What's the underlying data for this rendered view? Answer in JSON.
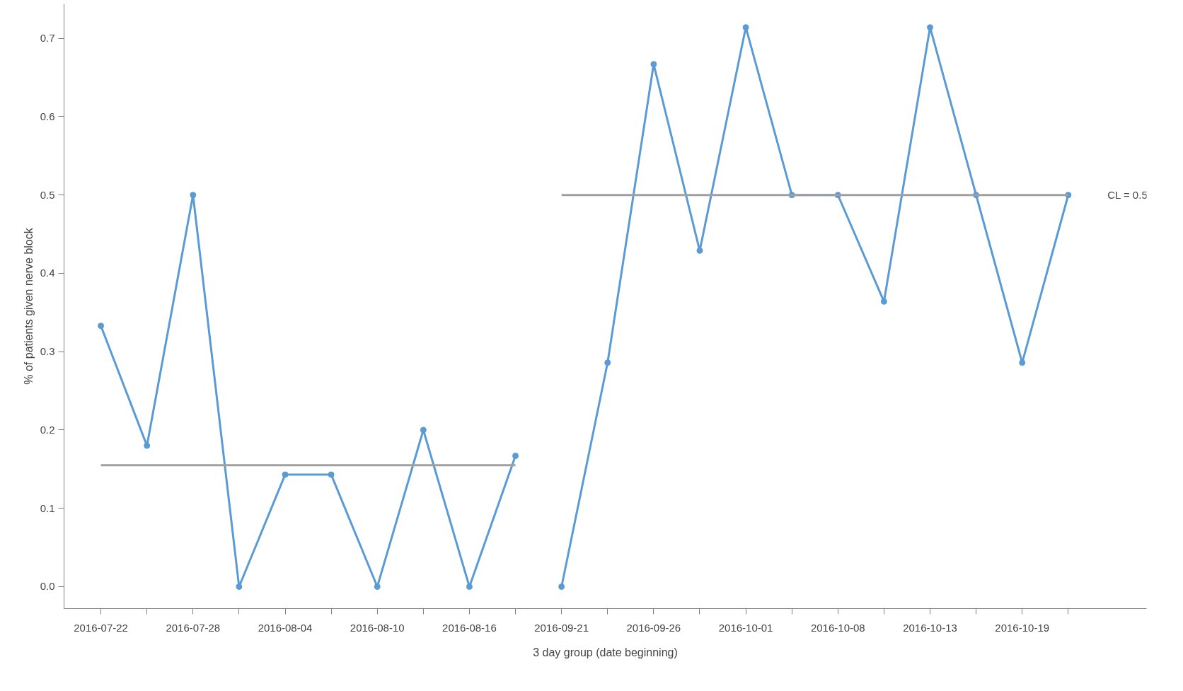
{
  "chart_data": {
    "type": "line",
    "xlabel": "3 day group (date beginning)",
    "ylabel": "% of patients given nerve block",
    "categories": [
      "2016-07-22",
      null,
      "2016-07-28",
      null,
      "2016-08-04",
      null,
      "2016-08-10",
      null,
      "2016-08-16",
      null,
      "2016-09-21",
      null,
      "2016-09-26",
      null,
      "2016-10-01",
      null,
      "2016-10-08",
      null,
      "2016-10-13",
      null,
      "2016-10-19",
      null
    ],
    "series": [
      {
        "color": "#5b9bd5",
        "marker": "circle",
        "values": [
          0.333,
          0.18,
          0.5,
          0.0,
          0.143,
          0.143,
          0.0,
          0.2,
          0.0,
          0.167,
          null,
          null,
          null,
          null,
          null,
          null,
          null,
          null,
          null,
          null,
          null,
          null
        ]
      },
      {
        "color": "#5b9bd5",
        "marker": "circle",
        "values": [
          null,
          null,
          null,
          null,
          null,
          null,
          null,
          null,
          null,
          null,
          0.0,
          0.286,
          0.667,
          0.429,
          0.714,
          0.5,
          0.5,
          0.364,
          0.714,
          0.5,
          0.286,
          0.5
        ]
      },
      {
        "color": "#a0a0a0",
        "marker": "none",
        "values": [
          0.155,
          0.155,
          0.155,
          0.155,
          0.155,
          0.155,
          0.155,
          0.155,
          0.155,
          0.155,
          null,
          null,
          null,
          null,
          null,
          null,
          null,
          null,
          null,
          null,
          null,
          null
        ]
      },
      {
        "color": "#a0a0a0",
        "marker": "none",
        "values": [
          null,
          null,
          null,
          null,
          null,
          null,
          null,
          null,
          null,
          null,
          0.5,
          0.5,
          0.5,
          0.5,
          0.5,
          0.5,
          0.5,
          0.5,
          0.5,
          0.5,
          0.5,
          0.5
        ]
      }
    ],
    "annotations": [
      "CL = 0.5"
    ],
    "ylim": [
      -0.028,
      0.744
    ],
    "yticks": [
      {
        "value": 0,
        "label": "0.0"
      },
      0.1,
      0.2,
      0.3,
      0.4,
      0.5,
      0.6,
      0.7
    ],
    "grid": false
  }
}
